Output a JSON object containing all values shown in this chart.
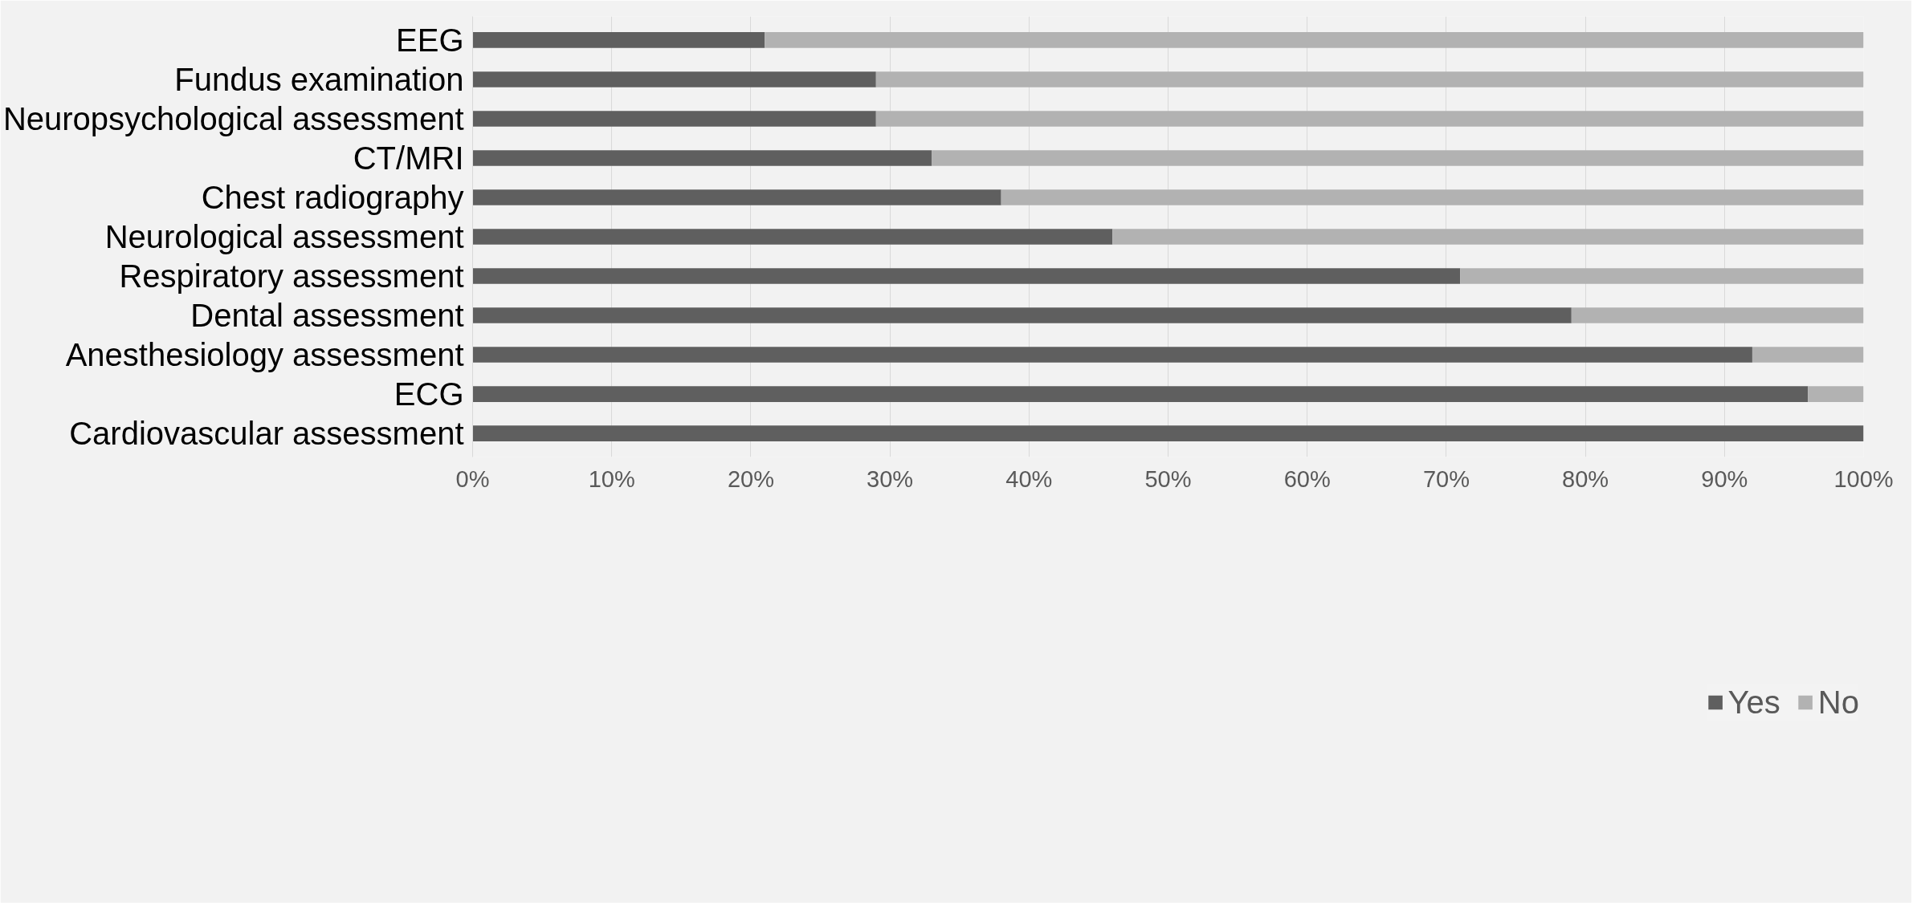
{
  "chart_data": {
    "type": "bar",
    "orientation": "horizontal",
    "stacked": true,
    "categories": [
      "EEG",
      "Fundus examination",
      "Neuropsychological assessment",
      "CT/MRI",
      "Chest radiography",
      "Neurological assessment",
      "Respiratory assessment",
      "Dental assessment",
      "Anesthesiology assessment",
      "ECG",
      "Cardiovascular assessment"
    ],
    "series": [
      {
        "name": "Yes",
        "color": "#5f5f5f",
        "values": [
          21,
          29,
          29,
          33,
          38,
          46,
          71,
          79,
          92,
          96,
          100
        ]
      },
      {
        "name": "No",
        "color": "#b2b2b2",
        "values": [
          79,
          71,
          71,
          67,
          62,
          54,
          29,
          21,
          8,
          4,
          0
        ]
      }
    ],
    "xlim": [
      0,
      100
    ],
    "xticks": [
      {
        "value": 0,
        "label": "0%"
      },
      {
        "value": 10,
        "label": "10%"
      },
      {
        "value": 20,
        "label": "20%"
      },
      {
        "value": 30,
        "label": "30%"
      },
      {
        "value": 40,
        "label": "40%"
      },
      {
        "value": 50,
        "label": "50%"
      },
      {
        "value": 60,
        "label": "60%"
      },
      {
        "value": 70,
        "label": "70%"
      },
      {
        "value": 80,
        "label": "80%"
      },
      {
        "value": 90,
        "label": "90%"
      },
      {
        "value": 100,
        "label": "100%"
      }
    ],
    "grid": "x",
    "legend": "bottom"
  }
}
